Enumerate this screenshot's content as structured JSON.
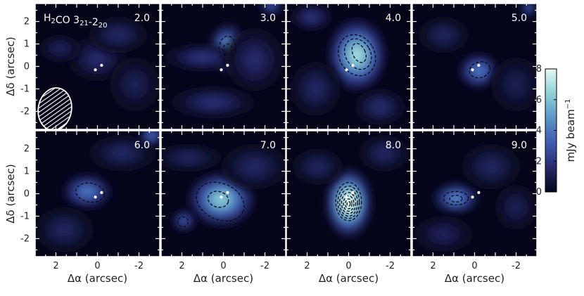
{
  "chart_data": {
    "type": "heatmap",
    "title": "",
    "molecule_label": {
      "main": "H",
      "sub1": "2",
      "mid": "CO 3",
      "sub2": "21",
      "dash": "-2",
      "sub3": "20"
    },
    "xlabel": "Δα (arcsec)",
    "ylabel": "Δδ (arcsec)",
    "xlim": [
      3,
      -3
    ],
    "ylim": [
      -2.8,
      2.8
    ],
    "xticks": [
      2,
      0,
      -2
    ],
    "yticks": [
      2,
      1,
      0,
      -1,
      -2
    ],
    "colorbar": {
      "label": "mJy beam",
      "label_exponent": "−1",
      "min": 0,
      "max": 8,
      "ticks": [
        0,
        2,
        4,
        6,
        8
      ],
      "colors": [
        "#05051a",
        "#262a6b",
        "#3f5bb0",
        "#5b95c4",
        "#8fd0d6",
        "#e6f9f4"
      ]
    },
    "stars": [
      {
        "x": -0.2,
        "y": 0.05
      },
      {
        "x": 0.1,
        "y": -0.15
      }
    ],
    "beam": {
      "x": 2.05,
      "y": -1.9,
      "major": 0.95,
      "minor": 0.8,
      "pa": 10
    },
    "panels": [
      {
        "label": "2.0",
        "blobs": [
          {
            "x": 0.0,
            "y": 0.35,
            "sx": 0.7,
            "sy": 0.5,
            "amp": 1.6
          },
          {
            "x": -1.0,
            "y": 1.4,
            "sx": 0.7,
            "sy": 0.4,
            "amp": 1.5
          },
          {
            "x": 1.8,
            "y": 0.8,
            "sx": 0.5,
            "sy": 0.3,
            "amp": 1.3
          },
          {
            "x": -1.8,
            "y": -0.8,
            "sx": 0.6,
            "sy": 0.6,
            "amp": 1.2
          }
        ],
        "contours": []
      },
      {
        "label": "3.0",
        "blobs": [
          {
            "x": -0.2,
            "y": 0.8,
            "sx": 0.45,
            "sy": 0.55,
            "amp": 5.2
          },
          {
            "x": 1.0,
            "y": 0.4,
            "sx": 0.9,
            "sy": 0.3,
            "amp": 2.0
          },
          {
            "x": 0.5,
            "y": -1.6,
            "sx": 1.0,
            "sy": 0.35,
            "amp": 1.8
          },
          {
            "x": -1.5,
            "y": 0.3,
            "sx": 0.7,
            "sy": 0.7,
            "amp": 1.6
          },
          {
            "x": -2.3,
            "y": 2.7,
            "sx": 0.3,
            "sy": 0.2,
            "amp": 3.0
          }
        ],
        "contours": [
          {
            "x": -0.2,
            "y": 0.8,
            "rx": 0.4,
            "ry": 0.55,
            "rot": 0
          },
          {
            "x": -0.2,
            "y": 0.75,
            "rx": 0.22,
            "ry": 0.25,
            "rot": 0
          }
        ]
      },
      {
        "label": "4.0",
        "blobs": [
          {
            "x": -0.4,
            "y": 0.5,
            "sx": 0.7,
            "sy": 0.8,
            "amp": 6.8
          },
          {
            "x": 1.8,
            "y": 2.2,
            "sx": 0.5,
            "sy": 0.3,
            "amp": 2.0
          },
          {
            "x": 1.6,
            "y": -1.0,
            "sx": 0.6,
            "sy": 0.6,
            "amp": 1.5
          },
          {
            "x": -1.5,
            "y": -1.8,
            "sx": 0.6,
            "sy": 0.4,
            "amp": 1.7
          }
        ],
        "contours": [
          {
            "x": -0.4,
            "y": 0.5,
            "rx": 0.85,
            "ry": 0.95,
            "rot": -30
          },
          {
            "x": -0.45,
            "y": 0.55,
            "rx": 0.6,
            "ry": 0.72,
            "rot": -30
          },
          {
            "x": -0.5,
            "y": 0.6,
            "rx": 0.3,
            "ry": 0.45,
            "rot": -25
          }
        ]
      },
      {
        "label": "5.0",
        "blobs": [
          {
            "x": -0.2,
            "y": -0.2,
            "sx": 0.5,
            "sy": 0.4,
            "amp": 4.0
          },
          {
            "x": 1.5,
            "y": 1.4,
            "sx": 0.6,
            "sy": 0.4,
            "amp": 1.4
          },
          {
            "x": -2.0,
            "y": -0.8,
            "sx": 0.6,
            "sy": 0.6,
            "amp": 1.1
          },
          {
            "x": -2.6,
            "y": 2.6,
            "sx": 0.2,
            "sy": 0.2,
            "amp": 3.0
          }
        ],
        "contours": [
          {
            "x": -0.25,
            "y": -0.15,
            "rx": 0.5,
            "ry": 0.35,
            "rot": -15
          }
        ]
      },
      {
        "label": "6.0",
        "blobs": [
          {
            "x": 0.5,
            "y": 0.1,
            "sx": 0.6,
            "sy": 0.4,
            "amp": 4.0
          },
          {
            "x": -1.2,
            "y": 1.8,
            "sx": 0.8,
            "sy": 0.4,
            "amp": 1.5
          },
          {
            "x": 1.6,
            "y": -1.6,
            "sx": 0.7,
            "sy": 0.5,
            "amp": 1.4
          },
          {
            "x": -2.6,
            "y": 2.6,
            "sx": 0.3,
            "sy": 0.25,
            "amp": 3.5
          }
        ],
        "contours": [
          {
            "x": 0.35,
            "y": 0.05,
            "rx": 0.7,
            "ry": 0.42,
            "rot": 10
          }
        ]
      },
      {
        "label": "7.0",
        "blobs": [
          {
            "x": 0.1,
            "y": -0.25,
            "sx": 0.8,
            "sy": 0.6,
            "amp": 6.3
          },
          {
            "x": 1.9,
            "y": -1.2,
            "sx": 0.3,
            "sy": 0.25,
            "amp": 3.0
          },
          {
            "x": -1.5,
            "y": 1.2,
            "sx": 0.8,
            "sy": 0.5,
            "amp": 1.5
          },
          {
            "x": 1.7,
            "y": 1.6,
            "sx": 0.8,
            "sy": 0.3,
            "amp": 1.4
          }
        ],
        "contours": [
          {
            "x": 0.15,
            "y": -0.35,
            "rx": 1.2,
            "ry": 0.8,
            "rot": 25
          },
          {
            "x": 0.25,
            "y": -0.25,
            "rx": 0.5,
            "ry": 0.35,
            "rot": 15
          },
          {
            "x": 1.95,
            "y": -1.25,
            "rx": 0.25,
            "ry": 0.22,
            "rot": 0
          }
        ]
      },
      {
        "label": "8.0",
        "blobs": [
          {
            "x": 0.0,
            "y": -0.4,
            "sx": 0.55,
            "sy": 0.75,
            "amp": 8.5
          },
          {
            "x": 1.5,
            "y": 1.2,
            "sx": 0.6,
            "sy": 0.4,
            "amp": 1.4
          },
          {
            "x": -1.7,
            "y": 1.8,
            "sx": 0.6,
            "sy": 0.4,
            "amp": 1.5
          }
        ],
        "contours": [
          {
            "x": 0.0,
            "y": -0.35,
            "rx": 0.62,
            "ry": 0.85,
            "rot": 0
          },
          {
            "x": 0.0,
            "y": -0.38,
            "rx": 0.52,
            "ry": 0.72,
            "rot": 0
          },
          {
            "x": 0.0,
            "y": -0.4,
            "rx": 0.43,
            "ry": 0.6,
            "rot": 0
          },
          {
            "x": 0.0,
            "y": -0.42,
            "rx": 0.34,
            "ry": 0.47,
            "rot": 0
          },
          {
            "x": 0.0,
            "y": -0.44,
            "rx": 0.25,
            "ry": 0.34,
            "rot": 0
          },
          {
            "x": 0.0,
            "y": -0.45,
            "rx": 0.16,
            "ry": 0.22,
            "rot": 0
          },
          {
            "x": 0.0,
            "y": -0.45,
            "rx": 0.08,
            "ry": 0.1,
            "rot": 0
          }
        ]
      },
      {
        "label": "9.0",
        "blobs": [
          {
            "x": 0.9,
            "y": -0.2,
            "sx": 0.55,
            "sy": 0.35,
            "amp": 4.4
          },
          {
            "x": -0.8,
            "y": 1.2,
            "sx": 0.7,
            "sy": 0.5,
            "amp": 1.4
          },
          {
            "x": 1.5,
            "y": -1.8,
            "sx": 0.7,
            "sy": 0.4,
            "amp": 1.3
          },
          {
            "x": -2.0,
            "y": -0.6,
            "sx": 0.5,
            "sy": 0.5,
            "amp": 1.2
          }
        ],
        "contours": [
          {
            "x": 0.9,
            "y": -0.2,
            "rx": 0.6,
            "ry": 0.3,
            "rot": 0
          },
          {
            "x": 0.9,
            "y": -0.22,
            "rx": 0.3,
            "ry": 0.15,
            "rot": 0
          }
        ]
      }
    ]
  }
}
